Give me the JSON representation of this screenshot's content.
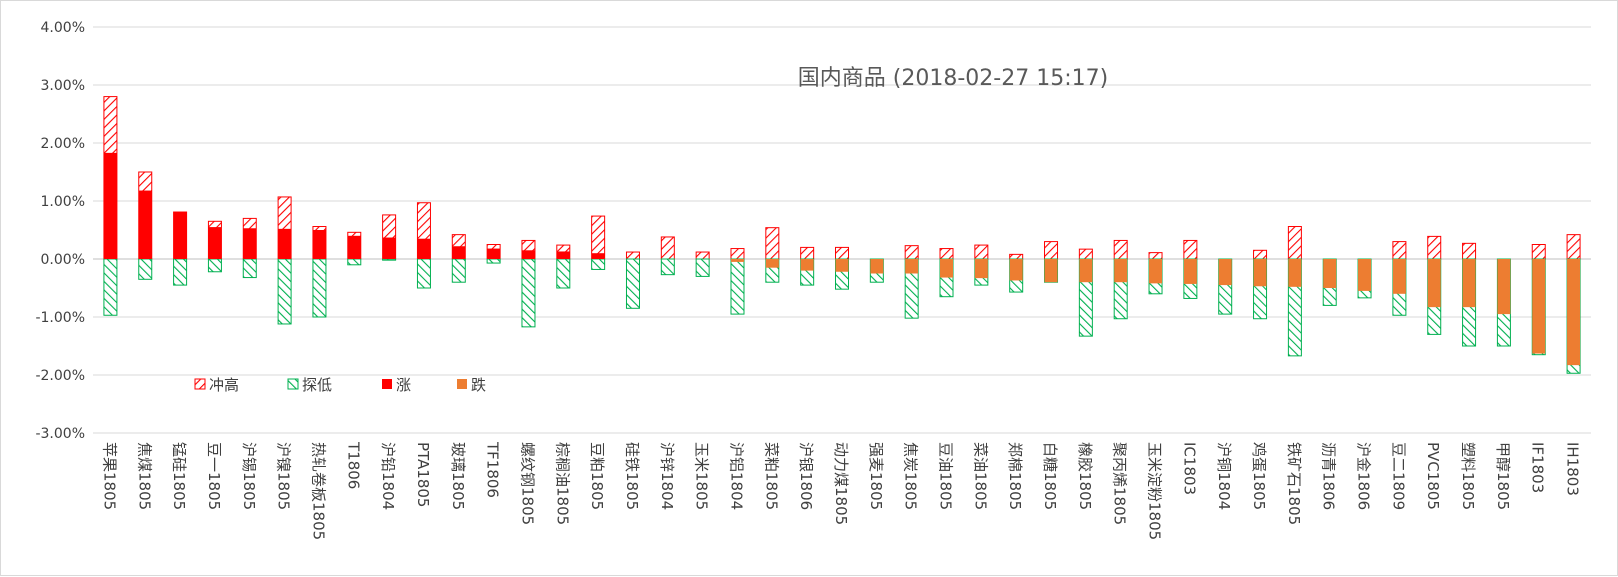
{
  "chart_data": {
    "type": "bar",
    "title": "国内商品 (2018-02-27 15:17)",
    "ylim": [
      -0.03,
      0.04
    ],
    "ytick_labels": [
      "4.00%",
      "3.00%",
      "2.00%",
      "1.00%",
      "0.00%",
      "-1.00%",
      "-2.00%",
      "-3.00%"
    ],
    "grid": true,
    "legend_position": "lower-left",
    "legend": [
      "冲高",
      "探低",
      "涨",
      "跌"
    ],
    "categories": [
      "苹果1805",
      "焦煤1805",
      "锰硅1805",
      "豆一1805",
      "沪锡1805",
      "沪镍1805",
      "热轧卷板1805",
      "T1806",
      "沪铅1804",
      "PTA1805",
      "玻璃1805",
      "TF1806",
      "螺纹钢1805",
      "棕榈油1805",
      "豆粕1805",
      "硅铁1805",
      "沪锌1804",
      "玉米1805",
      "沪铝1804",
      "菜粕1805",
      "沪银1806",
      "动力煤1805",
      "强麦1805",
      "焦炭1805",
      "豆油1805",
      "菜油1805",
      "郑棉1805",
      "白糖1805",
      "橡胶1805",
      "聚丙烯1805",
      "玉米淀粉1805",
      "IC1803",
      "沪铜1804",
      "鸡蛋1805",
      "铁矿石1805",
      "沥青1806",
      "沪金1806",
      "豆二1809",
      "PVC1805",
      "塑料1805",
      "甲醇1805",
      "IF1803",
      "IH1803"
    ],
    "series": [
      {
        "name": "冲高",
        "values": [
          0.028,
          0.015,
          0.0081,
          0.0065,
          0.007,
          0.0107,
          0.0056,
          0.0046,
          0.0076,
          0.0097,
          0.0042,
          0.0025,
          0.0032,
          0.0024,
          0.0074,
          0.0012,
          0.0038,
          0.0012,
          0.0018,
          0.0054,
          0.002,
          0.002,
          0.0,
          0.0023,
          0.0018,
          0.0024,
          0.0008,
          0.003,
          0.0017,
          0.0032,
          0.0011,
          0.0032,
          0.0,
          0.0015,
          0.0056,
          0.0,
          0.0,
          0.003,
          0.0039,
          0.0027,
          0.0,
          0.0025,
          0.0042
        ]
      },
      {
        "name": "探低",
        "values": [
          -0.0097,
          -0.0035,
          -0.0045,
          -0.0022,
          -0.0032,
          -0.0112,
          -0.01,
          -0.001,
          -0.0002,
          -0.005,
          -0.004,
          -0.0007,
          -0.0117,
          -0.005,
          -0.0018,
          -0.0085,
          -0.0027,
          -0.003,
          -0.0095,
          -0.004,
          -0.0045,
          -0.0052,
          -0.004,
          -0.0102,
          -0.0065,
          -0.0045,
          -0.0057,
          -0.004,
          -0.0133,
          -0.0103,
          -0.006,
          -0.0068,
          -0.0095,
          -0.0103,
          -0.0167,
          -0.008,
          -0.0067,
          -0.0097,
          -0.013,
          -0.015,
          -0.015,
          -0.0165,
          -0.0197
        ]
      },
      {
        "name": "涨",
        "values": [
          0.0183,
          0.0118,
          0.0081,
          0.0055,
          0.0053,
          0.0052,
          0.005,
          0.004,
          0.0037,
          0.0035,
          0.0022,
          0.0018,
          0.0015,
          0.0013,
          0.001,
          0,
          0,
          0,
          0,
          0,
          0,
          0,
          0,
          0,
          0,
          0,
          0,
          0,
          0,
          0,
          0,
          0,
          0,
          0,
          0,
          0,
          0,
          0,
          0,
          0,
          0,
          0,
          0
        ]
      },
      {
        "name": "跌",
        "values": [
          0,
          0,
          0,
          0,
          0,
          0,
          0,
          0,
          0,
          0,
          0,
          0,
          0,
          0,
          0,
          0,
          0,
          0,
          -0.0005,
          -0.0015,
          -0.002,
          -0.0022,
          -0.0025,
          -0.0025,
          -0.0032,
          -0.0033,
          -0.0037,
          -0.004,
          -0.004,
          -0.004,
          -0.0042,
          -0.0043,
          -0.0045,
          -0.0047,
          -0.0048,
          -0.005,
          -0.0055,
          -0.006,
          -0.0083,
          -0.0083,
          -0.0095,
          -0.0163,
          -0.0183
        ]
      }
    ],
    "colors": {
      "rise": "#ff0000",
      "fall": "#ed7d31",
      "high": "#ff0000",
      "low": "#00b050",
      "grid": "#d9d9d9",
      "axis": "#bfbfbf"
    }
  }
}
